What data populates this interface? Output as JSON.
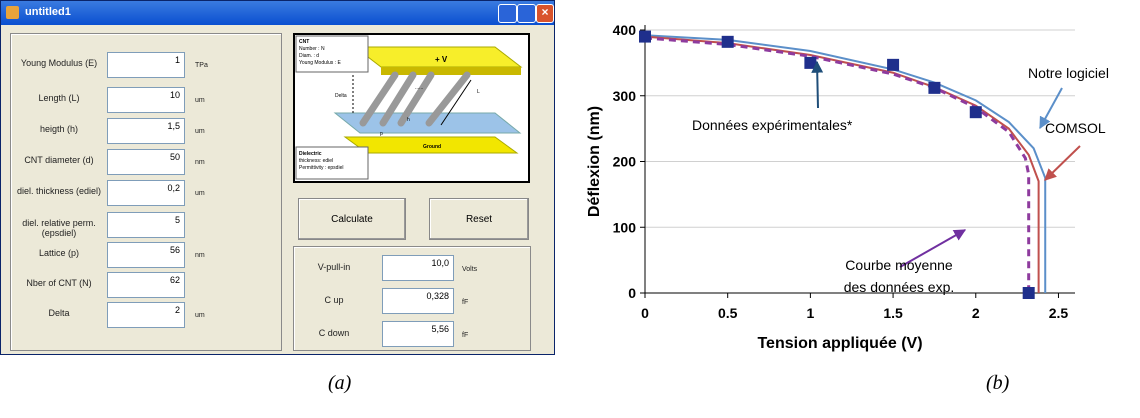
{
  "window": {
    "title": "untitled1"
  },
  "fields": [
    {
      "label": "Young Modulus (E)",
      "value": "1",
      "unit": "TPa"
    },
    {
      "label": "Length (L)",
      "value": "10",
      "unit": "um"
    },
    {
      "label": "heigth (h)",
      "value": "1,5",
      "unit": "um"
    },
    {
      "label": "CNT diameter (d)",
      "value": "50",
      "unit": "nm"
    },
    {
      "label": "diel. thickness (ediel)",
      "value": "0,2",
      "unit": "um"
    },
    {
      "label": "diel. relative perm. (epsdiel)",
      "value": "5"
    },
    {
      "label": "Lattice (p)",
      "value": "56",
      "unit": "nm"
    },
    {
      "label": "Nber of CNT (N)",
      "value": "62"
    },
    {
      "label": "Delta",
      "value": "2",
      "unit": "um"
    }
  ],
  "diagram": {
    "cnt_box": [
      "CNT",
      "Number : N",
      "Diam. : d",
      "Young Modulus : E"
    ],
    "top_plate": "+ V",
    "delta": "Delta",
    "length": "L",
    "lattice": "p",
    "height": "h",
    "dots": "......",
    "ground": "Ground",
    "dielectric_box": [
      "Dielectric",
      "thickness: ediel",
      "Permittivity : epsdiel"
    ]
  },
  "buttons": [
    "Calculate",
    "Reset"
  ],
  "outputs": [
    {
      "label": "V-pull-in",
      "value": "10,0",
      "unit": "Volts"
    },
    {
      "label": "C up",
      "value": "0,328",
      "unit": "fF"
    },
    {
      "label": "C down",
      "value": "5,56",
      "unit": "fF"
    }
  ],
  "captions": [
    "(a)",
    "(b)"
  ],
  "chart_data": {
    "type": "line",
    "x_label": "Tension appliquée (V)",
    "y_label": "Déflexion (nm)",
    "xlim": [
      0,
      2.6
    ],
    "ylim": [
      0,
      400
    ],
    "xticks": [
      0,
      {
        "value": 0.5,
        "label": "0.5"
      },
      1,
      {
        "value": 1.5,
        "label": "1.5"
      },
      2,
      {
        "value": 2.5,
        "label": "2.5"
      }
    ],
    "yticks": [
      0,
      100,
      200,
      300,
      400
    ],
    "grid": true,
    "series": [
      {
        "style": "solid",
        "color": "#5b8fc9",
        "x": [
          0,
          0.5,
          1,
          1.5,
          1.75,
          2,
          2.2,
          2.35,
          2.42,
          2.42
        ],
        "values": [
          392,
          385,
          368,
          340,
          320,
          293,
          260,
          220,
          175,
          0
        ]
      },
      {
        "style": "solid",
        "color": "#c0504d",
        "x": [
          0,
          0.5,
          1,
          1.5,
          1.75,
          2,
          2.2,
          2.32,
          2.38,
          2.38
        ],
        "values": [
          390,
          380,
          362,
          335,
          313,
          285,
          250,
          210,
          170,
          0
        ]
      },
      {
        "style": "dashed",
        "color": "#8e3b9e",
        "x": [
          0,
          0.5,
          1,
          1.5,
          1.75,
          2,
          2.2,
          2.3,
          2.32,
          2.32
        ],
        "values": [
          388,
          378,
          360,
          333,
          312,
          282,
          245,
          205,
          180,
          0
        ]
      },
      {
        "style": "markers",
        "color": "#1f2f8c",
        "x": [
          0,
          0.5,
          1,
          1.5,
          1.75,
          2,
          2.32
        ],
        "values": [
          390,
          382,
          350,
          347,
          312,
          275,
          0
        ]
      }
    ],
    "annotations": [
      {
        "lines": [
          "Données expérimentales*"
        ]
      },
      {
        "lines": [
          "Notre logiciel"
        ]
      },
      {
        "lines": [
          "COMSOL"
        ]
      },
      {
        "lines": [
          "Courbe moyenne",
          "des données exp."
        ]
      }
    ]
  }
}
